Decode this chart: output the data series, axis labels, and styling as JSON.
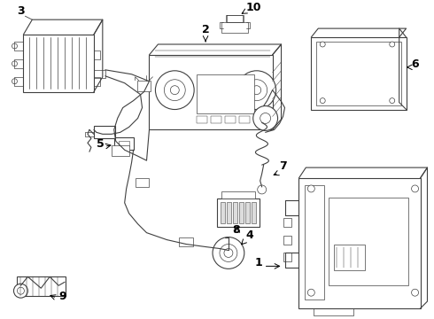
{
  "background_color": "#ffffff",
  "line_color": "#404040",
  "figsize": [
    4.9,
    3.6
  ],
  "dpi": 100,
  "xlim": [
    0,
    490
  ],
  "ylim": [
    0,
    360
  ]
}
